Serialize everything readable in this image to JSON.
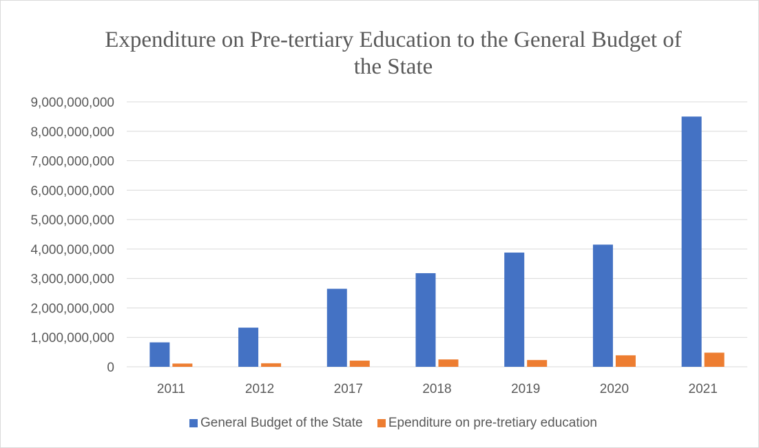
{
  "chart_data": {
    "type": "bar",
    "title": "Expenditure on Pre-tertiary Education to the General Budget of the State",
    "xlabel": "",
    "ylabel": "",
    "categories": [
      "2011",
      "2012",
      "2017",
      "2018",
      "2019",
      "2020",
      "2021"
    ],
    "ylim": [
      0,
      9000000000
    ],
    "yticks": [
      0,
      1000000000,
      2000000000,
      3000000000,
      4000000000,
      5000000000,
      6000000000,
      7000000000,
      8000000000,
      9000000000
    ],
    "ytick_labels": [
      "0",
      "1,000,000,000",
      "2,000,000,000",
      "3,000,000,000",
      "4,000,000,000",
      "5,000,000,000",
      "6,000,000,000",
      "7,000,000,000",
      "8,000,000,000",
      "9,000,000,000"
    ],
    "grid": true,
    "legend": "bottom",
    "series": [
      {
        "name": "General Budget of the State",
        "color": "#4472c4",
        "values": [
          830000000,
          1330000000,
          2650000000,
          3180000000,
          3880000000,
          4150000000,
          8500000000
        ]
      },
      {
        "name": "Ependiture on pre-tretiary education",
        "color": "#ed7d31",
        "values": [
          110000000,
          120000000,
          210000000,
          250000000,
          230000000,
          390000000,
          480000000
        ]
      }
    ]
  }
}
